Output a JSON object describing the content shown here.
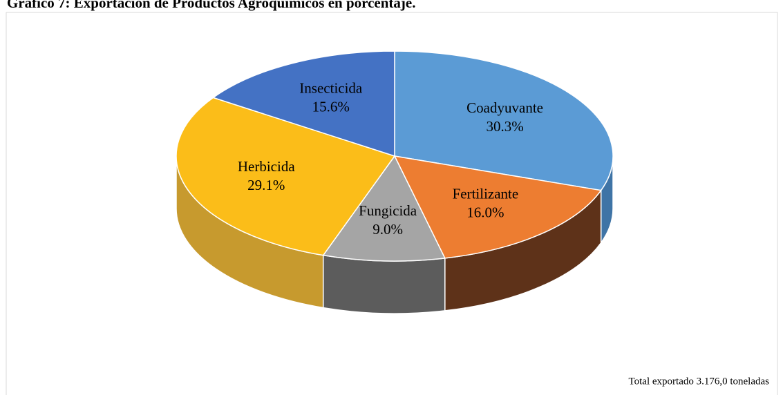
{
  "chart_data": {
    "type": "pie",
    "title": "Gráfico 7: Exportación de Productos Agroquímicos en porcentaje.",
    "categories": [
      "Coadyuvante",
      "Fertilizante",
      "Fungicida",
      "Herbicida",
      "Insecticida"
    ],
    "values": [
      30.3,
      16.0,
      9.0,
      29.1,
      15.6
    ],
    "value_labels": [
      "30.3%",
      "16.0%",
      "9.0%",
      "29.1%",
      "15.6%"
    ],
    "colors": [
      "#5b9bd5",
      "#ed7d31",
      "#a5a5a5",
      "#fbbd19",
      "#4472c4"
    ],
    "side_colors": [
      "#3f74a6",
      "#5e3219",
      "#5c5c5c",
      "#c79a2e",
      "#2f5597"
    ],
    "annotation": "Total exportado 3.176,0 toneladas"
  }
}
